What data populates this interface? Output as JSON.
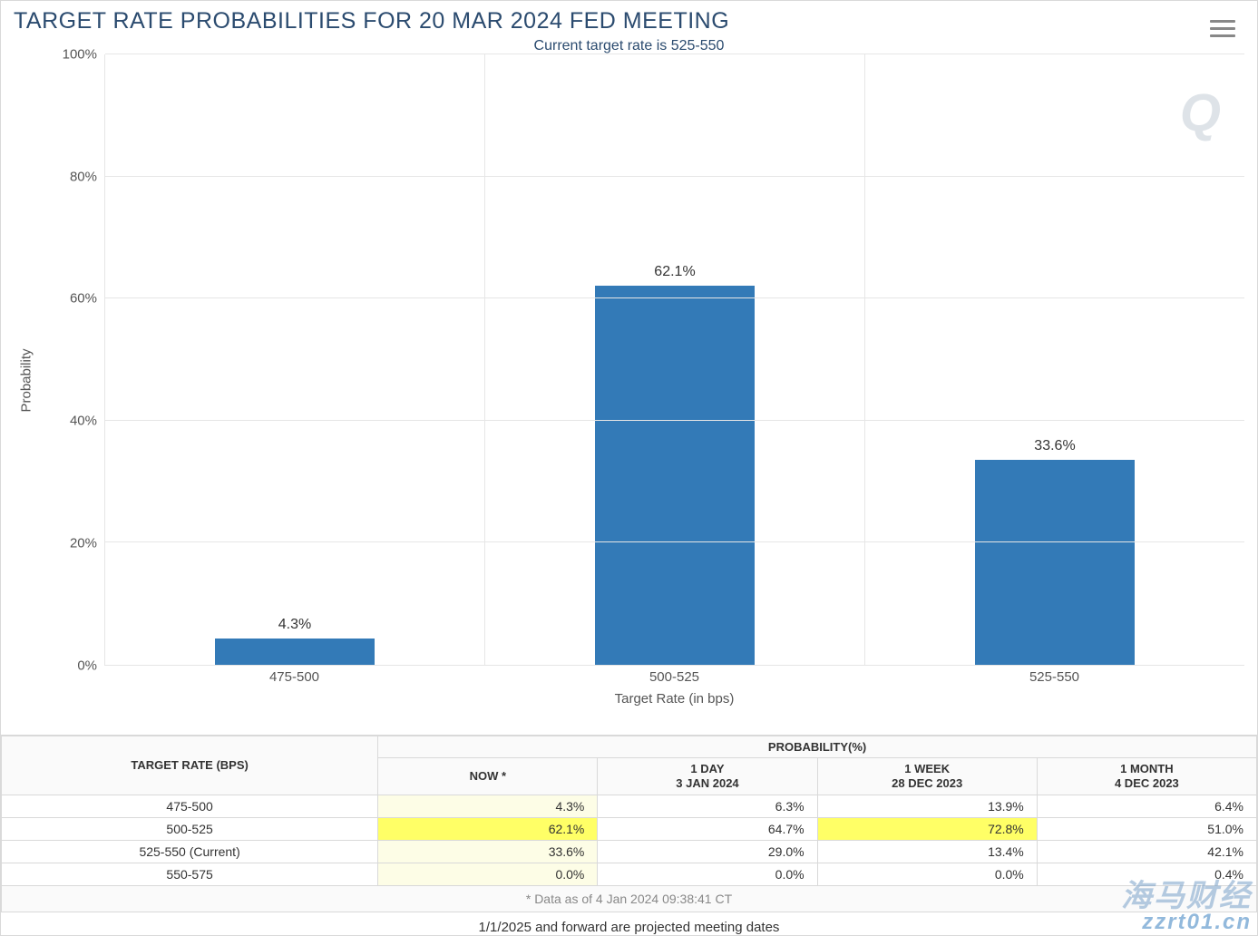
{
  "chart": {
    "type": "bar",
    "title": "TARGET RATE PROBABILITIES FOR 20 MAR 2024 FED MEETING",
    "title_color": "#2b4b6f",
    "subtitle": "Current target rate is 525-550",
    "subtitle_color": "#2b4b6f",
    "ylabel": "Probability",
    "xlabel": "Target Rate (in bps)",
    "categories": [
      "475-500",
      "500-525",
      "525-550"
    ],
    "values": [
      4.3,
      62.1,
      33.6
    ],
    "value_labels": [
      "4.3%",
      "62.1%",
      "33.6%"
    ],
    "bar_color": "#337ab7",
    "ylim": [
      0,
      100
    ],
    "ytick_step": 20,
    "ytick_labels": [
      "0%",
      "20%",
      "40%",
      "60%",
      "80%",
      "100%"
    ],
    "grid_color": "#e6e6e6",
    "bar_width_pct": 42,
    "data_label_fontsize": 16,
    "axis_label_fontsize": 15,
    "title_fontsize": 25,
    "background_color": "#ffffff"
  },
  "table": {
    "header_main_left": "TARGET RATE (BPS)",
    "header_main_right": "PROBABILITY(%)",
    "columns": [
      {
        "line1": "NOW",
        "line2": "",
        "asterisk": true
      },
      {
        "line1": "1 DAY",
        "line2": "3 JAN 2024",
        "asterisk": false
      },
      {
        "line1": "1 WEEK",
        "line2": "28 DEC 2023",
        "asterisk": false
      },
      {
        "line1": "1 MONTH",
        "line2": "4 DEC 2023",
        "asterisk": false
      }
    ],
    "rows": [
      {
        "rate": "475-500",
        "cells": [
          "4.3%",
          "6.3%",
          "13.9%",
          "6.4%"
        ]
      },
      {
        "rate": "500-525",
        "cells": [
          "62.1%",
          "64.7%",
          "72.8%",
          "51.0%"
        ]
      },
      {
        "rate": "525-550 (Current)",
        "cells": [
          "33.6%",
          "29.0%",
          "13.4%",
          "42.1%"
        ]
      },
      {
        "rate": "550-575",
        "cells": [
          "0.0%",
          "0.0%",
          "0.0%",
          "0.4%"
        ]
      }
    ],
    "highlight": {
      "pale_column_index": 0,
      "bright_cells": [
        [
          1,
          0
        ],
        [
          1,
          2
        ]
      ],
      "pale_color": "#fdfde6",
      "bright_color": "#ffff66"
    },
    "note": "* Data as of 4 Jan 2024 09:38:41 CT",
    "footer": "1/1/2025 and forward are projected meeting dates"
  },
  "watermark": {
    "top_right": "Q",
    "bottom_right_line1": "海马财经",
    "bottom_right_line2": "zzrt01.cn"
  }
}
